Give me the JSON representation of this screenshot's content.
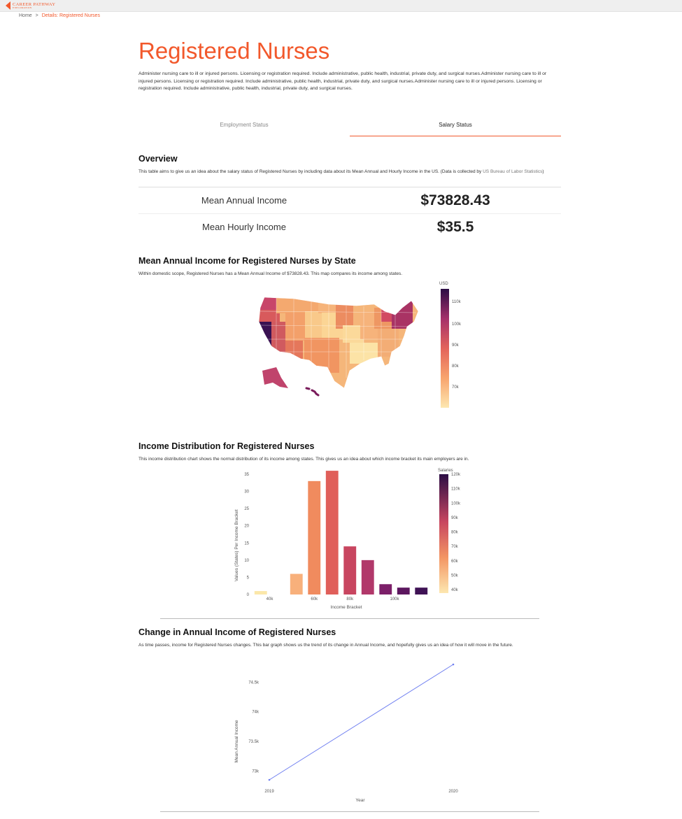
{
  "header": {
    "logo_text_top": "CAREER PATHWAY",
    "logo_text_bottom": "EXPLORATION"
  },
  "breadcrumb": {
    "home": "Home",
    "separator": ">",
    "current": "Details: Registered Nurses"
  },
  "page": {
    "title": "Registered Nurses",
    "description": "Administer nursing care to ill or injured persons. Licensing or registration required. Include administrative, public health, industrial, private duty, and surgical nurses.Administer nursing care to ill or injured persons. Licensing or registration required. Include administrative, public health, industrial, private duty, and surgical nurses.Administer nursing care to ill or injured persons. Licensing or registration required. Include administrative, public health, industrial, private duty, and surgical nurses."
  },
  "tabs": [
    {
      "label": "Employment Status",
      "active": false
    },
    {
      "label": "Salary Status",
      "active": true
    }
  ],
  "overview": {
    "heading": "Overview",
    "text": "This table aims to give us an idea about the salary status of Registered Nurses by including data about its Mean Annual and Hourly Income in the US. (Data is collected by ",
    "source": "US Bureau of Labor Statistics",
    "text_end": ")",
    "rows": [
      {
        "label": "Mean Annual Income",
        "value": "$73828.43"
      },
      {
        "label": "Mean Hourly Income",
        "value": "$35.5"
      }
    ]
  },
  "map_section": {
    "heading": "Mean Annual Income for Registered Nurses by State",
    "text": "Within domestic scope, Registered Nurses has a Mean Annual Income of $73828.43. This map compares its income among states.",
    "colorbar_title": "USD",
    "colorbar_ticks": [
      "110k",
      "100k",
      "90k",
      "80k",
      "70k"
    ]
  },
  "distribution_section": {
    "heading": "Income Distribution for Registered Nurses",
    "text": "This income distribution chart shows the normal distribution of its income among states. This gives us an idea about which income bracket its main employers are in.",
    "colorbar_title": "Salaries",
    "colorbar_ticks": [
      "120k",
      "110k",
      "100k",
      "90k",
      "80k",
      "70k",
      "60k",
      "50k",
      "40k"
    ]
  },
  "change_section": {
    "heading": "Change in Annual Income of Registered Nurses",
    "text": "As time passes, income for Registered Nurses changes. This bar graph shows us the trend of its change in Annual Income, and hopefully gives us an idea of how it will move in the future."
  },
  "colors": {
    "accent": "#f2582b",
    "line": "#6f7ff0"
  },
  "chart_data": [
    {
      "type": "bar",
      "xlabel": "Income Bracket",
      "ylabel": "Values (States) Per Income Bracket",
      "x_ticks": [
        "40k",
        "60k",
        "80k",
        "100k"
      ],
      "y_ticks": [
        "0",
        "5",
        "10",
        "15",
        "20",
        "25",
        "30",
        "35"
      ],
      "ylim": [
        0,
        35
      ],
      "categories": [
        "35k",
        "45k",
        "55k",
        "65k",
        "75k",
        "85k",
        "95k",
        "105k",
        "115k",
        "125k"
      ],
      "values": [
        1,
        0,
        6,
        33,
        36,
        14,
        10,
        3,
        2,
        2
      ],
      "colors": [
        "#fbe7a9",
        "#ffffff",
        "#f8b07b",
        "#f08b5e",
        "#e05f5a",
        "#c84660",
        "#b1386a",
        "#7c1f69",
        "#5c175f",
        "#3f1255"
      ]
    },
    {
      "type": "line",
      "xlabel": "Year",
      "ylabel": "Mean Annual Income",
      "x_ticks": [
        "2019",
        "2020"
      ],
      "y_ticks": [
        "73k",
        "73.5k",
        "74k",
        "74.5k"
      ],
      "x": [
        2019,
        2020
      ],
      "y": [
        72850,
        74800
      ],
      "ylim": [
        72850,
        74800
      ]
    }
  ]
}
